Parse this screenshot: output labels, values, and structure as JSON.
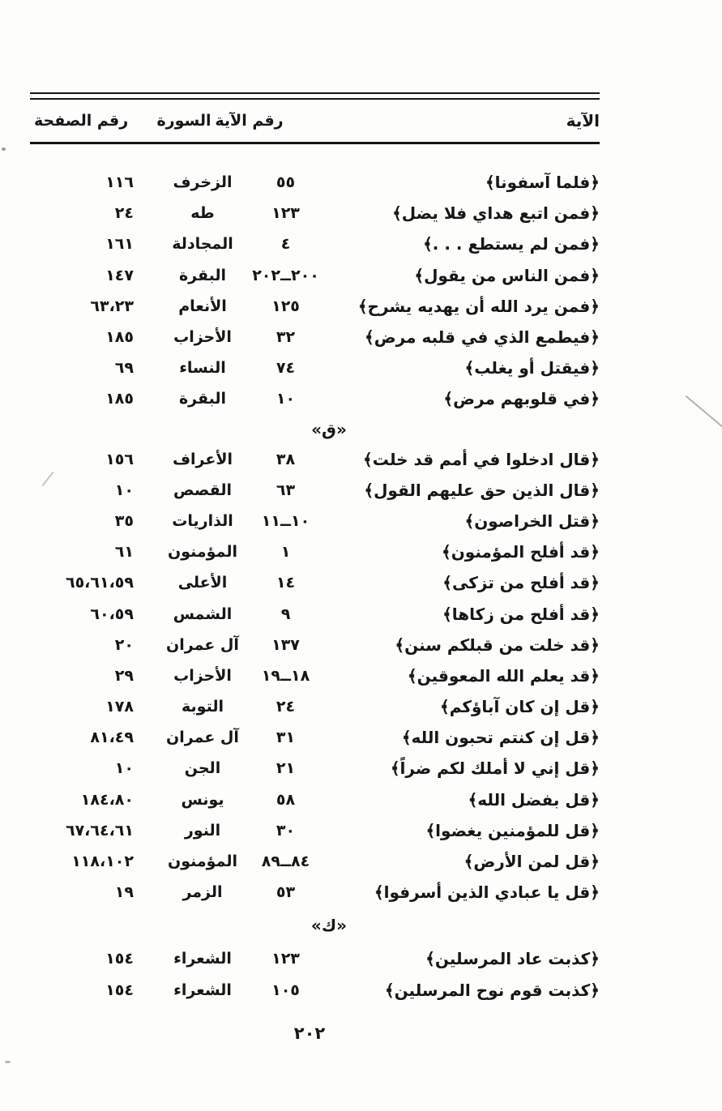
{
  "colors": {
    "ink": "#161616",
    "paper": "#fdfdfb"
  },
  "table": {
    "columns": {
      "verse": "الآية",
      "verse_number": "رقم الآية",
      "surah": "السورة",
      "page_number": "رقم الصفحة"
    },
    "sections": [
      {
        "letter": "",
        "rows": [
          {
            "verse": "﴿فلما آسفونا﴾",
            "verse_no": "٥٥",
            "surah": "الزخرف",
            "pages": "١١٦"
          },
          {
            "verse": "﴿فمن اتبع هداي فلا يضل﴾",
            "verse_no": "١٢٣",
            "surah": "طه",
            "pages": "٢٤"
          },
          {
            "verse": "﴿فمن لم يستطع . . .﴾",
            "verse_no": "٤",
            "surah": "المجادلة",
            "pages": "١٦١"
          },
          {
            "verse": "﴿فمن الناس من يقول﴾",
            "verse_no": "٢٠٠ــ٢٠٢",
            "surah": "البقرة",
            "pages": "١٤٧"
          },
          {
            "verse": "﴿فمن يرد الله أن يهديه يشرح﴾",
            "verse_no": "١٢٥",
            "surah": "الأنعام",
            "pages": "٦٣،٢٣"
          },
          {
            "verse": "﴿فيطمع الذي في قلبه مرض﴾",
            "verse_no": "٣٢",
            "surah": "الأحزاب",
            "pages": "١٨٥"
          },
          {
            "verse": "﴿فيقتل أو يغلب﴾",
            "verse_no": "٧٤",
            "surah": "النساء",
            "pages": "٦٩"
          },
          {
            "verse": "﴿في قلوبهم مرض﴾",
            "verse_no": "١٠",
            "surah": "البقرة",
            "pages": "١٨٥"
          }
        ]
      },
      {
        "letter": "«ق»",
        "rows": [
          {
            "verse": "﴿قال ادخلوا في أمم قد خلت﴾",
            "verse_no": "٣٨",
            "surah": "الأعراف",
            "pages": "١٥٦"
          },
          {
            "verse": "﴿قال الذين حق عليهم القول﴾",
            "verse_no": "٦٣",
            "surah": "القصص",
            "pages": "١٠"
          },
          {
            "verse": "﴿قتل الخراصون﴾",
            "verse_no": "١٠ــ١١",
            "surah": "الذاريات",
            "pages": "٣٥"
          },
          {
            "verse": "﴿قد أفلح المؤمنون﴾",
            "verse_no": "١",
            "surah": "المؤمنون",
            "pages": "٦١"
          },
          {
            "verse": "﴿قد أفلح من تزكى﴾",
            "verse_no": "١٤",
            "surah": "الأعلى",
            "pages": "٦٥،٦١،٥٩"
          },
          {
            "verse": "﴿قد أفلح من زكاها﴾",
            "verse_no": "٩",
            "surah": "الشمس",
            "pages": "٦٠،٥٩"
          },
          {
            "verse": "﴿قد خلت من قبلكم سنن﴾",
            "verse_no": "١٣٧",
            "surah": "آل عمران",
            "pages": "٢٠"
          },
          {
            "verse": "﴿قد يعلم الله المعوقين﴾",
            "verse_no": "١٨ــ١٩",
            "surah": "الأحزاب",
            "pages": "٢٩"
          },
          {
            "verse": "﴿قل إن كان آباؤكم﴾",
            "verse_no": "٢٤",
            "surah": "التوبة",
            "pages": "١٧٨"
          },
          {
            "verse": "﴿قل إن كنتم تحبون الله﴾",
            "verse_no": "٣١",
            "surah": "آل عمران",
            "pages": "٨١،٤٩"
          },
          {
            "verse": "﴿قل إني لا أملك لكم ضراً﴾",
            "verse_no": "٢١",
            "surah": "الجن",
            "pages": "١٠"
          },
          {
            "verse": "﴿قل بفضل الله﴾",
            "verse_no": "٥٨",
            "surah": "يونس",
            "pages": "١٨٤،٨٠"
          },
          {
            "verse": "﴿قل للمؤمنين يغضوا﴾",
            "verse_no": "٣٠",
            "surah": "النور",
            "pages": "٦٧،٦٤،٦١"
          },
          {
            "verse": "﴿قل لمن الأرض﴾",
            "verse_no": "٨٤ــ٨٩",
            "surah": "المؤمنون",
            "pages": "١١٨،١٠٢"
          },
          {
            "verse": "﴿قل يا عبادي الذين أسرفوا﴾",
            "verse_no": "٥٣",
            "surah": "الزمر",
            "pages": "١٩"
          }
        ]
      },
      {
        "letter": "«ك»",
        "rows": [
          {
            "verse": "﴿كذبت عاد المرسلين﴾",
            "verse_no": "١٢٣",
            "surah": "الشعراء",
            "pages": "١٥٤"
          },
          {
            "verse": "﴿كذبت قوم نوح المرسلين﴾",
            "verse_no": "١٠٥",
            "surah": "الشعراء",
            "pages": "١٥٤"
          }
        ]
      }
    ]
  },
  "footer": {
    "page_number": "٢٠٢"
  }
}
